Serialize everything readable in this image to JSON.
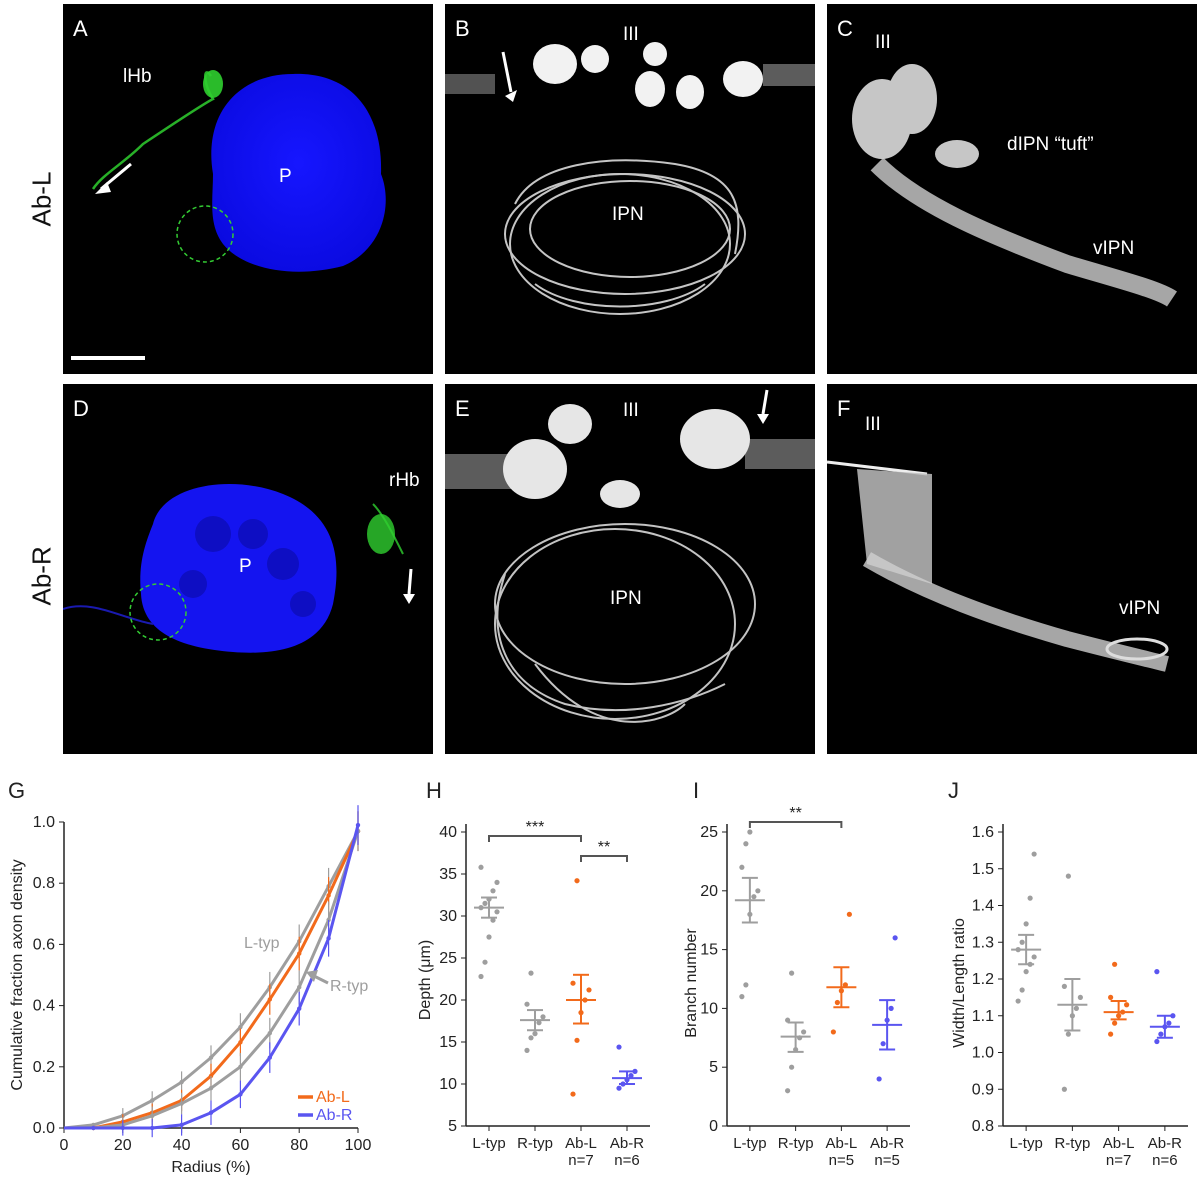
{
  "figure": {
    "row_labels": [
      "Ab-L",
      "Ab-R"
    ],
    "panels": {
      "A": {
        "letter": "A",
        "labels": [
          "lHb",
          "P"
        ]
      },
      "B": {
        "letter": "B",
        "labels": [
          "III",
          "IPN"
        ]
      },
      "C": {
        "letter": "C",
        "labels": [
          "III",
          "dIPN “tuft”",
          "vIPN"
        ]
      },
      "D": {
        "letter": "D",
        "labels": [
          "rHb",
          "P"
        ]
      },
      "E": {
        "letter": "E",
        "labels": [
          "III",
          "IPN"
        ]
      },
      "F": {
        "letter": "F",
        "labels": [
          "III",
          "vIPN"
        ]
      }
    },
    "colors": {
      "gray": "#9e9e9e",
      "orange": "#f26a1b",
      "blue": "#5a55f0",
      "green": "#22c222",
      "dapi": "#1010f5"
    }
  },
  "chart_data": [
    {
      "panel": "G",
      "type": "line",
      "xlabel": "Radius (%)",
      "ylabel": "Cumulative fraction axon density",
      "xlim": [
        0,
        100
      ],
      "ylim": [
        0,
        1.0
      ],
      "xticks": [
        "0",
        "20",
        "40",
        "60",
        "80",
        "100"
      ],
      "yticks": [
        "0.0",
        "0.2",
        "0.4",
        "0.6",
        "0.8",
        "1.0"
      ],
      "x": [
        10,
        20,
        30,
        40,
        50,
        60,
        70,
        80,
        90,
        100
      ],
      "series": [
        {
          "name": "L-typ",
          "color": "#9e9e9e",
          "values": [
            0.01,
            0.04,
            0.09,
            0.15,
            0.23,
            0.33,
            0.46,
            0.61,
            0.79,
            0.97
          ]
        },
        {
          "name": "Ab-L",
          "color": "#f26a1b",
          "values": [
            0.0,
            0.02,
            0.05,
            0.09,
            0.17,
            0.28,
            0.42,
            0.57,
            0.76,
            0.97
          ]
        },
        {
          "name": "R-typ",
          "color": "#9e9e9e",
          "values": [
            0.0,
            0.01,
            0.04,
            0.08,
            0.13,
            0.2,
            0.31,
            0.46,
            0.68,
            0.97
          ]
        },
        {
          "name": "Ab-R",
          "color": "#5a55f0",
          "values": [
            0.0,
            0.0,
            0.0,
            0.01,
            0.05,
            0.11,
            0.23,
            0.39,
            0.62,
            0.99
          ]
        }
      ],
      "annotations": [
        "L-typ",
        "R-typ"
      ],
      "legend": [
        "Ab-L",
        "Ab-R"
      ],
      "legend_position": "bottom-right"
    },
    {
      "panel": "H",
      "type": "scatter",
      "ylabel": "Depth (μm)",
      "ylim": [
        5,
        40
      ],
      "yticks": [
        "5",
        "10",
        "15",
        "20",
        "25",
        "30",
        "35",
        "40"
      ],
      "categories": [
        "L-typ",
        "R-typ",
        "Ab-L",
        "Ab-R"
      ],
      "n_labels": [
        "",
        "",
        "n=7",
        "n=6"
      ],
      "groups": [
        {
          "name": "L-typ",
          "color": "#9e9e9e",
          "mean": 31.0,
          "sem_low": 29.8,
          "sem_high": 32.2,
          "points": [
            22.8,
            24.5,
            27.5,
            29.5,
            30.5,
            31.0,
            31.5,
            32.0,
            33.0,
            34.0,
            35.8
          ]
        },
        {
          "name": "R-typ",
          "color": "#9e9e9e",
          "mean": 17.6,
          "sem_low": 16.4,
          "sem_high": 18.8,
          "points": [
            14.0,
            15.5,
            16.0,
            17.3,
            18.0,
            19.5,
            23.2
          ]
        },
        {
          "name": "Ab-L",
          "color": "#f26a1b",
          "mean": 20.0,
          "sem_low": 17.2,
          "sem_high": 23.0,
          "points": [
            8.8,
            15.2,
            18.5,
            20.0,
            21.2,
            22.0,
            34.2
          ]
        },
        {
          "name": "Ab-R",
          "color": "#5a55f0",
          "mean": 10.7,
          "sem_low": 10.0,
          "sem_high": 11.5,
          "points": [
            9.5,
            10.0,
            10.5,
            11.0,
            11.5,
            14.4
          ]
        }
      ],
      "significance": [
        {
          "from": "L-typ",
          "to": "Ab-L",
          "label": "***"
        },
        {
          "from": "Ab-L",
          "to": "Ab-R",
          "label": "**"
        }
      ]
    },
    {
      "panel": "I",
      "type": "scatter",
      "ylabel": "Branch number",
      "ylim": [
        0,
        25
      ],
      "yticks": [
        "0",
        "5",
        "10",
        "15",
        "20",
        "25"
      ],
      "categories": [
        "L-typ",
        "R-typ",
        "Ab-L",
        "Ab-R"
      ],
      "n_labels": [
        "",
        "",
        "n=5",
        "n=5"
      ],
      "groups": [
        {
          "name": "L-typ",
          "color": "#9e9e9e",
          "mean": 19.2,
          "sem_low": 17.3,
          "sem_high": 21.1,
          "points": [
            11.0,
            12.0,
            18.0,
            19.5,
            20.0,
            22.0,
            24.0,
            25.0
          ]
        },
        {
          "name": "R-typ",
          "color": "#9e9e9e",
          "mean": 7.6,
          "sem_low": 6.3,
          "sem_high": 8.8,
          "points": [
            3.0,
            5.0,
            6.5,
            7.5,
            8.0,
            9.0,
            13.0
          ]
        },
        {
          "name": "Ab-L",
          "color": "#f26a1b",
          "mean": 11.8,
          "sem_low": 10.1,
          "sem_high": 13.5,
          "points": [
            8.0,
            10.5,
            11.5,
            12.0,
            18.0
          ]
        },
        {
          "name": "Ab-R",
          "color": "#5a55f0",
          "mean": 8.6,
          "sem_low": 6.5,
          "sem_high": 10.7,
          "points": [
            4.0,
            7.0,
            9.0,
            10.0,
            16.0
          ]
        }
      ],
      "significance": [
        {
          "from": "L-typ",
          "to": "Ab-L",
          "label": "**"
        }
      ]
    },
    {
      "panel": "J",
      "type": "scatter",
      "ylabel": "Width/Length ratio",
      "ylim": [
        0.8,
        1.6
      ],
      "yticks": [
        "0.8",
        "0.9",
        "1.0",
        "1.1",
        "1.2",
        "1.3",
        "1.4",
        "1.5",
        "1.6"
      ],
      "categories": [
        "L-typ",
        "R-typ",
        "Ab-L",
        "Ab-R"
      ],
      "n_labels": [
        "",
        "",
        "n=7",
        "n=6"
      ],
      "groups": [
        {
          "name": "L-typ",
          "color": "#9e9e9e",
          "mean": 1.28,
          "sem_low": 1.24,
          "sem_high": 1.32,
          "points": [
            1.14,
            1.17,
            1.22,
            1.24,
            1.26,
            1.28,
            1.3,
            1.35,
            1.42,
            1.54
          ]
        },
        {
          "name": "R-typ",
          "color": "#9e9e9e",
          "mean": 1.13,
          "sem_low": 1.06,
          "sem_high": 1.2,
          "points": [
            0.9,
            1.05,
            1.1,
            1.12,
            1.15,
            1.18,
            1.48
          ]
        },
        {
          "name": "Ab-L",
          "color": "#f26a1b",
          "mean": 1.11,
          "sem_low": 1.09,
          "sem_high": 1.14,
          "points": [
            1.05,
            1.08,
            1.1,
            1.11,
            1.13,
            1.15,
            1.24
          ]
        },
        {
          "name": "Ab-R",
          "color": "#5a55f0",
          "mean": 1.07,
          "sem_low": 1.04,
          "sem_high": 1.1,
          "points": [
            1.03,
            1.05,
            1.07,
            1.08,
            1.1,
            1.22
          ]
        }
      ],
      "significance": []
    }
  ]
}
